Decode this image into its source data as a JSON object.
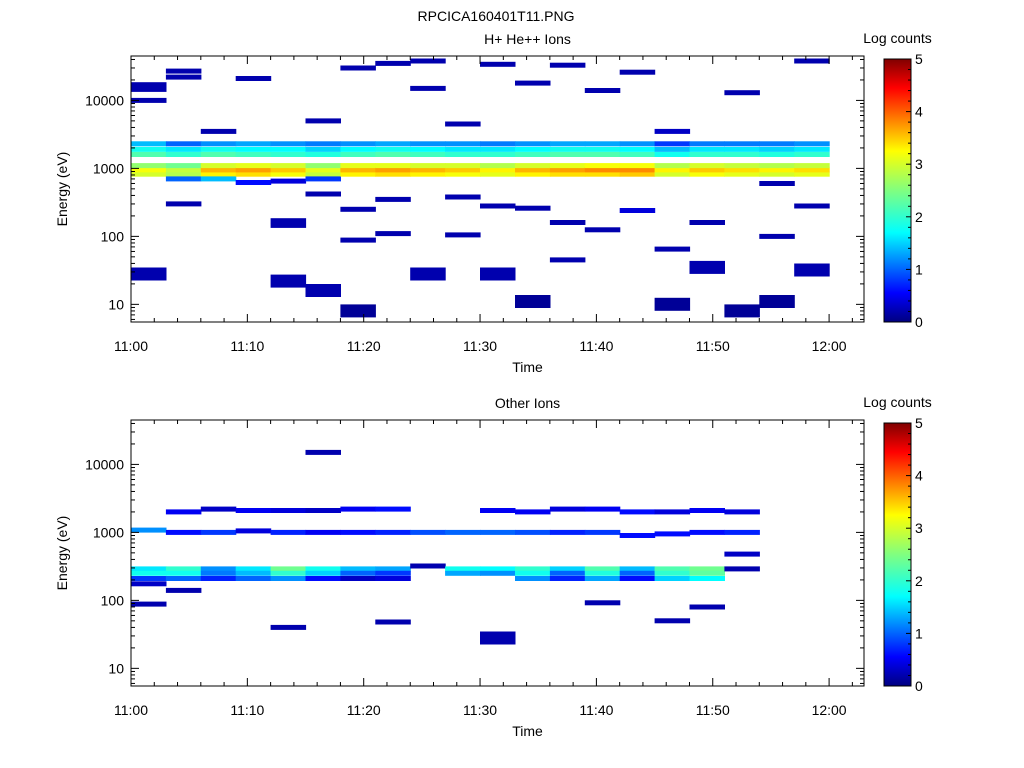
{
  "figure_title": "RPCICA160401T11.PNG",
  "chart_data": [
    {
      "type": "heatmap",
      "title": "H+ He++ Ions",
      "xlabel": "Time",
      "ylabel": "Energy (eV)",
      "x_tick_labels": [
        "11:00",
        "11:10",
        "11:20",
        "11:30",
        "11:40",
        "11:50",
        "12:00"
      ],
      "y_tick_labels": [
        "10",
        "100",
        "1000",
        "10000"
      ],
      "y_scale": "log",
      "ylim": [
        5.5,
        45000
      ],
      "xlim": [
        "11:00",
        "12:03"
      ],
      "time_bins": [
        "11:00",
        "11:03",
        "11:06",
        "11:09",
        "11:12",
        "11:15",
        "11:18",
        "11:21",
        "11:24",
        "11:27",
        "11:30",
        "11:33",
        "11:36",
        "11:39",
        "11:42",
        "11:45",
        "11:48",
        "11:51",
        "11:54",
        "11:57",
        "12:00"
      ],
      "colorbar": {
        "label": "Log counts",
        "ticks": [
          "0",
          "1",
          "2",
          "3",
          "4",
          "5"
        ],
        "range": [
          0,
          5
        ]
      },
      "cells": [
        [
          0,
          820,
          3.0
        ],
        [
          0,
          950,
          3.2
        ],
        [
          0,
          1100,
          2.6
        ],
        [
          0,
          1600,
          2.2
        ],
        [
          0,
          1900,
          1.8
        ],
        [
          0,
          2300,
          1.4
        ],
        [
          0,
          28,
          0.2
        ],
        [
          0,
          17000,
          0.2
        ],
        [
          0,
          14500,
          0.2
        ],
        [
          0,
          10000,
          0.2
        ],
        [
          1,
          820,
          2.8
        ],
        [
          1,
          950,
          2.9
        ],
        [
          1,
          1100,
          2.4
        ],
        [
          1,
          1600,
          2.0
        ],
        [
          1,
          1900,
          1.6
        ],
        [
          1,
          2300,
          1.0
        ],
        [
          1,
          700,
          1.0
        ],
        [
          1,
          300,
          0.2
        ],
        [
          1,
          27000,
          0.2
        ],
        [
          1,
          22000,
          0.2
        ],
        [
          2,
          820,
          3.3
        ],
        [
          2,
          950,
          3.6
        ],
        [
          2,
          1100,
          3.0
        ],
        [
          2,
          1600,
          2.2
        ],
        [
          2,
          1900,
          1.8
        ],
        [
          2,
          2300,
          1.2
        ],
        [
          2,
          3500,
          0.2
        ],
        [
          2,
          700,
          1.4
        ],
        [
          3,
          820,
          3.4
        ],
        [
          3,
          950,
          3.7
        ],
        [
          3,
          1100,
          3.1
        ],
        [
          3,
          1600,
          2.1
        ],
        [
          3,
          1900,
          1.7
        ],
        [
          3,
          2300,
          1.3
        ],
        [
          3,
          620,
          0.6
        ],
        [
          3,
          21000,
          0.2
        ],
        [
          4,
          820,
          3.2
        ],
        [
          4,
          950,
          3.5
        ],
        [
          4,
          1100,
          3.0
        ],
        [
          4,
          1600,
          2.0
        ],
        [
          4,
          1900,
          1.7
        ],
        [
          4,
          2300,
          1.2
        ],
        [
          4,
          650,
          0.4
        ],
        [
          4,
          22,
          0.2
        ],
        [
          4,
          170,
          0.2
        ],
        [
          4,
          145,
          0.2
        ],
        [
          5,
          820,
          2.9
        ],
        [
          5,
          950,
          3.1
        ],
        [
          5,
          1100,
          2.6
        ],
        [
          5,
          1600,
          1.9
        ],
        [
          5,
          1900,
          1.5
        ],
        [
          5,
          2300,
          1.1
        ],
        [
          5,
          700,
          0.8
        ],
        [
          5,
          16,
          0.2
        ],
        [
          5,
          5000,
          0.2
        ],
        [
          5,
          420,
          0.2
        ],
        [
          6,
          820,
          3.3
        ],
        [
          6,
          950,
          3.6
        ],
        [
          6,
          1100,
          3.1
        ],
        [
          6,
          1600,
          2.1
        ],
        [
          6,
          1900,
          1.7
        ],
        [
          6,
          2300,
          1.2
        ],
        [
          6,
          8,
          0.1
        ],
        [
          6,
          30000,
          0.2
        ],
        [
          6,
          250,
          0.2
        ],
        [
          6,
          88,
          0.2
        ],
        [
          7,
          820,
          3.4
        ],
        [
          7,
          950,
          3.7
        ],
        [
          7,
          1100,
          3.1
        ],
        [
          7,
          1600,
          2.2
        ],
        [
          7,
          1900,
          1.8
        ],
        [
          7,
          2300,
          1.3
        ],
        [
          7,
          35000,
          0.2
        ],
        [
          7,
          350,
          0.2
        ],
        [
          7,
          110,
          0.2
        ],
        [
          8,
          820,
          3.3
        ],
        [
          8,
          950,
          3.6
        ],
        [
          8,
          1100,
          3.0
        ],
        [
          8,
          1600,
          2.1
        ],
        [
          8,
          1900,
          1.7
        ],
        [
          8,
          2300,
          1.2
        ],
        [
          8,
          38000,
          0.2
        ],
        [
          8,
          15000,
          0.2
        ],
        [
          8,
          28,
          0.2
        ],
        [
          9,
          820,
          3.2
        ],
        [
          9,
          950,
          3.5
        ],
        [
          9,
          1100,
          3.0
        ],
        [
          9,
          1600,
          2.0
        ],
        [
          9,
          1900,
          1.6
        ],
        [
          9,
          2300,
          1.2
        ],
        [
          9,
          4500,
          0.2
        ],
        [
          9,
          380,
          0.2
        ],
        [
          9,
          105,
          0.2
        ],
        [
          10,
          820,
          3.1
        ],
        [
          10,
          950,
          3.3
        ],
        [
          10,
          1100,
          2.8
        ],
        [
          10,
          1600,
          2.0
        ],
        [
          10,
          1900,
          1.6
        ],
        [
          10,
          2300,
          1.1
        ],
        [
          10,
          34000,
          0.2
        ],
        [
          10,
          280,
          0.2
        ],
        [
          10,
          28,
          0.2
        ],
        [
          11,
          820,
          3.3
        ],
        [
          11,
          950,
          3.6
        ],
        [
          11,
          1100,
          3.0
        ],
        [
          11,
          1600,
          2.1
        ],
        [
          11,
          1900,
          1.7
        ],
        [
          11,
          2300,
          1.2
        ],
        [
          11,
          11,
          0.1
        ],
        [
          11,
          18000,
          0.2
        ],
        [
          11,
          260,
          0.2
        ],
        [
          12,
          820,
          3.4
        ],
        [
          12,
          950,
          3.7
        ],
        [
          12,
          1100,
          3.1
        ],
        [
          12,
          1600,
          2.2
        ],
        [
          12,
          1900,
          1.8
        ],
        [
          12,
          2300,
          1.3
        ],
        [
          12,
          33000,
          0.2
        ],
        [
          12,
          160,
          0.2
        ],
        [
          12,
          45,
          0.2
        ],
        [
          13,
          820,
          3.4
        ],
        [
          13,
          950,
          3.8
        ],
        [
          13,
          1100,
          3.2
        ],
        [
          13,
          1600,
          2.2
        ],
        [
          13,
          1900,
          1.8
        ],
        [
          13,
          2300,
          1.3
        ],
        [
          13,
          14000,
          0.2
        ],
        [
          13,
          125,
          0.2
        ],
        [
          14,
          820,
          3.5
        ],
        [
          14,
          950,
          3.8
        ],
        [
          14,
          1100,
          3.2
        ],
        [
          14,
          1600,
          2.1
        ],
        [
          14,
          1900,
          1.7
        ],
        [
          14,
          2300,
          1.2
        ],
        [
          14,
          240,
          0.4
        ],
        [
          14,
          26000,
          0.2
        ],
        [
          15,
          820,
          3.0
        ],
        [
          15,
          950,
          3.3
        ],
        [
          15,
          1100,
          2.8
        ],
        [
          15,
          1600,
          1.8
        ],
        [
          15,
          1900,
          1.4
        ],
        [
          15,
          2300,
          0.8
        ],
        [
          15,
          3500,
          0.3
        ],
        [
          15,
          10,
          0.1
        ],
        [
          15,
          65,
          0.2
        ],
        [
          16,
          820,
          3.2
        ],
        [
          16,
          950,
          3.5
        ],
        [
          16,
          1100,
          3.0
        ],
        [
          16,
          1600,
          2.0
        ],
        [
          16,
          1900,
          1.6
        ],
        [
          16,
          2300,
          1.1
        ],
        [
          16,
          35,
          0.2
        ],
        [
          16,
          160,
          0.2
        ],
        [
          17,
          820,
          3.1
        ],
        [
          17,
          950,
          3.4
        ],
        [
          17,
          1100,
          2.9
        ],
        [
          17,
          1600,
          2.0
        ],
        [
          17,
          1900,
          1.6
        ],
        [
          17,
          2300,
          1.1
        ],
        [
          17,
          8,
          0.1
        ],
        [
          17,
          13000,
          0.2
        ],
        [
          18,
          820,
          3.0
        ],
        [
          18,
          950,
          3.3
        ],
        [
          18,
          1100,
          2.8
        ],
        [
          18,
          1600,
          1.9
        ],
        [
          18,
          1900,
          1.5
        ],
        [
          18,
          2300,
          1.1
        ],
        [
          18,
          11,
          0.1
        ],
        [
          18,
          100,
          0.2
        ],
        [
          18,
          600,
          0.2
        ],
        [
          19,
          820,
          3.1
        ],
        [
          19,
          950,
          3.4
        ],
        [
          19,
          1100,
          2.9
        ],
        [
          19,
          1600,
          2.0
        ],
        [
          19,
          1900,
          1.6
        ],
        [
          19,
          2300,
          1.2
        ],
        [
          19,
          32,
          0.2
        ],
        [
          19,
          38000,
          0.2
        ],
        [
          19,
          280,
          0.2
        ]
      ]
    },
    {
      "type": "heatmap",
      "title": "Other Ions",
      "xlabel": "Time",
      "ylabel": "Energy (eV)",
      "x_tick_labels": [
        "11:00",
        "11:10",
        "11:20",
        "11:30",
        "11:40",
        "11:50",
        "12:00"
      ],
      "y_tick_labels": [
        "10",
        "100",
        "1000",
        "10000"
      ],
      "y_scale": "log",
      "ylim": [
        5.5,
        45000
      ],
      "xlim": [
        "11:00",
        "12:03"
      ],
      "time_bins": [
        "11:00",
        "11:03",
        "11:06",
        "11:09",
        "11:12",
        "11:15",
        "11:18",
        "11:21",
        "11:24",
        "11:27",
        "11:30",
        "11:33",
        "11:36",
        "11:39",
        "11:42",
        "11:45",
        "11:48",
        "11:51",
        "11:54",
        "11:57",
        "12:00"
      ],
      "colorbar": {
        "label": "Log counts",
        "ticks": [
          "0",
          "1",
          "2",
          "3",
          "4",
          "5"
        ],
        "range": [
          0,
          5
        ]
      },
      "cells": [
        [
          0,
          1080,
          1.2
        ],
        [
          0,
          290,
          1.6
        ],
        [
          0,
          250,
          1.8
        ],
        [
          0,
          210,
          0.8
        ],
        [
          0,
          175,
          0.3
        ],
        [
          0,
          88,
          0.2
        ],
        [
          1,
          2000,
          0.5
        ],
        [
          1,
          1000,
          0.6
        ],
        [
          1,
          290,
          2.0
        ],
        [
          1,
          250,
          1.8
        ],
        [
          1,
          210,
          1.0
        ],
        [
          1,
          140,
          0.2
        ],
        [
          2,
          2200,
          0.3
        ],
        [
          2,
          1000,
          0.8
        ],
        [
          2,
          290,
          1.2
        ],
        [
          2,
          250,
          1.1
        ],
        [
          2,
          210,
          0.7
        ],
        [
          3,
          2100,
          0.5
        ],
        [
          3,
          1050,
          0.4
        ],
        [
          3,
          290,
          1.6
        ],
        [
          3,
          250,
          1.4
        ],
        [
          3,
          210,
          1.0
        ],
        [
          4,
          2100,
          0.4
        ],
        [
          4,
          1000,
          0.7
        ],
        [
          4,
          290,
          2.4
        ],
        [
          4,
          250,
          2.0
        ],
        [
          4,
          210,
          1.2
        ],
        [
          4,
          40,
          0.2
        ],
        [
          5,
          2100,
          0.3
        ],
        [
          5,
          1000,
          0.5
        ],
        [
          5,
          290,
          1.8
        ],
        [
          5,
          250,
          1.5
        ],
        [
          5,
          210,
          0.6
        ],
        [
          5,
          15000,
          0.2
        ],
        [
          6,
          2200,
          0.5
        ],
        [
          6,
          1000,
          0.6
        ],
        [
          6,
          290,
          1.4
        ],
        [
          6,
          250,
          1.0
        ],
        [
          6,
          210,
          0.3
        ],
        [
          7,
          2200,
          0.6
        ],
        [
          7,
          1000,
          0.7
        ],
        [
          7,
          290,
          1.3
        ],
        [
          7,
          250,
          0.8
        ],
        [
          7,
          210,
          0.4
        ],
        [
          7,
          48,
          0.2
        ],
        [
          8,
          1000,
          0.9
        ],
        [
          8,
          320,
          0.2
        ],
        [
          9,
          1000,
          1.0
        ],
        [
          9,
          290,
          1.8
        ],
        [
          9,
          250,
          1.3
        ],
        [
          10,
          2100,
          0.5
        ],
        [
          10,
          1000,
          1.0
        ],
        [
          10,
          290,
          1.7
        ],
        [
          10,
          250,
          1.2
        ],
        [
          10,
          28,
          0.2
        ],
        [
          11,
          2000,
          0.5
        ],
        [
          11,
          1000,
          0.9
        ],
        [
          11,
          290,
          2.0
        ],
        [
          11,
          250,
          1.8
        ],
        [
          11,
          210,
          1.2
        ],
        [
          12,
          2200,
          0.4
        ],
        [
          12,
          1000,
          0.7
        ],
        [
          12,
          290,
          1.5
        ],
        [
          12,
          250,
          1.0
        ],
        [
          12,
          210,
          0.7
        ],
        [
          13,
          2200,
          0.5
        ],
        [
          13,
          1000,
          0.8
        ],
        [
          13,
          290,
          2.2
        ],
        [
          13,
          250,
          1.9
        ],
        [
          13,
          210,
          1.3
        ],
        [
          13,
          92,
          0.2
        ],
        [
          14,
          2000,
          0.6
        ],
        [
          14,
          900,
          0.6
        ],
        [
          14,
          290,
          1.4
        ],
        [
          14,
          250,
          1.0
        ],
        [
          14,
          210,
          0.6
        ],
        [
          15,
          2000,
          0.4
        ],
        [
          15,
          950,
          0.6
        ],
        [
          15,
          290,
          2.2
        ],
        [
          15,
          250,
          2.0
        ],
        [
          15,
          210,
          1.5
        ],
        [
          15,
          50,
          0.2
        ],
        [
          16,
          2100,
          0.5
        ],
        [
          16,
          1000,
          0.6
        ],
        [
          16,
          290,
          2.4
        ],
        [
          16,
          250,
          2.3
        ],
        [
          16,
          210,
          1.7
        ],
        [
          16,
          80,
          0.2
        ],
        [
          17,
          2000,
          0.4
        ],
        [
          17,
          1000,
          0.7
        ],
        [
          17,
          480,
          0.3
        ],
        [
          17,
          290,
          0.2
        ]
      ]
    }
  ]
}
